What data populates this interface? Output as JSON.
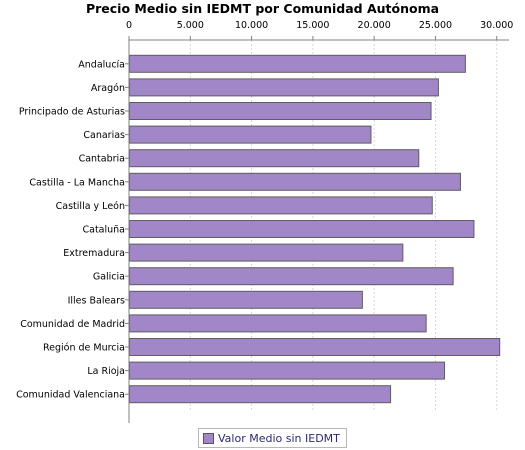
{
  "chart_data": {
    "type": "bar",
    "orientation": "horizontal",
    "title": "Precio Medio sin IEDMT por Comunidad Autónoma",
    "xlabel": "",
    "ylabel": "",
    "xlim": [
      0,
      31000
    ],
    "x_ticks": [
      0,
      5000,
      10000,
      15000,
      20000,
      25000,
      30000
    ],
    "x_tick_labels": [
      "0",
      "5.000",
      "10.000",
      "15.000",
      "20.000",
      "25.000",
      "30.000"
    ],
    "axis_position": "top",
    "grid": true,
    "legend_position": "bottom",
    "bar_color": "#a186c8",
    "categories": [
      "Andalucía",
      "Aragón",
      "Principado de Asturias",
      "Canarias",
      "Cantabria",
      "Castilla - La Mancha",
      "Castilla y León",
      "Cataluña",
      "Extremadura",
      "Galicia",
      "Illes Balears",
      "Comunidad de Madrid",
      "Región de Murcia",
      "La Rioja",
      "Comunidad Valenciana"
    ],
    "series": [
      {
        "name": "Valor Medio sin IEDMT",
        "values": [
          27400,
          25200,
          24600,
          19700,
          23600,
          27000,
          24700,
          28100,
          22300,
          26400,
          19000,
          24200,
          30200,
          25700,
          21300
        ]
      }
    ]
  }
}
